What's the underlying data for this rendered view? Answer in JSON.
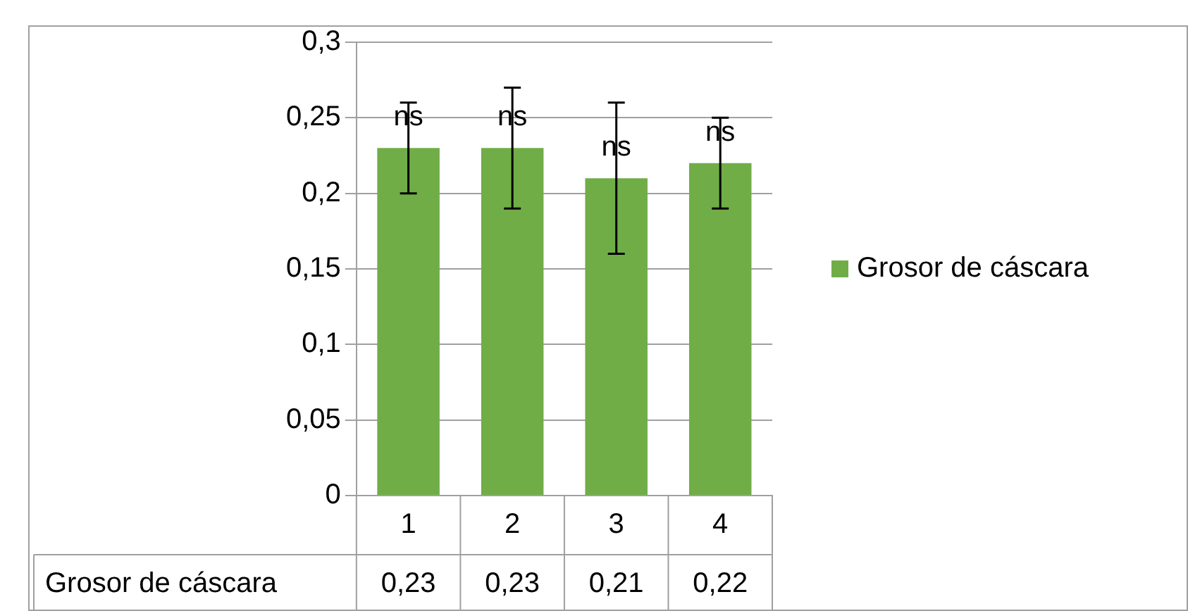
{
  "chart_data": {
    "type": "bar",
    "categories": [
      "1",
      "2",
      "3",
      "4"
    ],
    "series": [
      {
        "name": "Grosor de cáscara",
        "color": "#70ad47",
        "values": [
          0.23,
          0.23,
          0.21,
          0.22
        ],
        "value_labels": [
          "0,23",
          "0,23",
          "0,21",
          "0,22"
        ],
        "errors": [
          [
            0.2,
            0.26
          ],
          [
            0.19,
            0.27
          ],
          [
            0.16,
            0.26
          ],
          [
            0.19,
            0.25
          ]
        ]
      }
    ],
    "ylim": [
      0,
      0.3
    ],
    "yticks": [
      {
        "value": 0,
        "label": "0"
      },
      {
        "value": 0.05,
        "label": "0,05"
      },
      {
        "value": 0.1,
        "label": "0,1"
      },
      {
        "value": 0.15,
        "label": "0,15"
      },
      {
        "value": 0.2,
        "label": "0,2"
      },
      {
        "value": 0.25,
        "label": "0,25"
      },
      {
        "value": 0.3,
        "label": "0,3"
      }
    ],
    "annotations": [
      {
        "text": "ns",
        "x": "1",
        "y": 0.25
      },
      {
        "text": "ns",
        "x": "2",
        "y": 0.25
      },
      {
        "text": "ns",
        "x": "3",
        "y": 0.23
      },
      {
        "text": "ns",
        "x": "4",
        "y": 0.24
      }
    ],
    "grid": "y",
    "legend": "right"
  }
}
